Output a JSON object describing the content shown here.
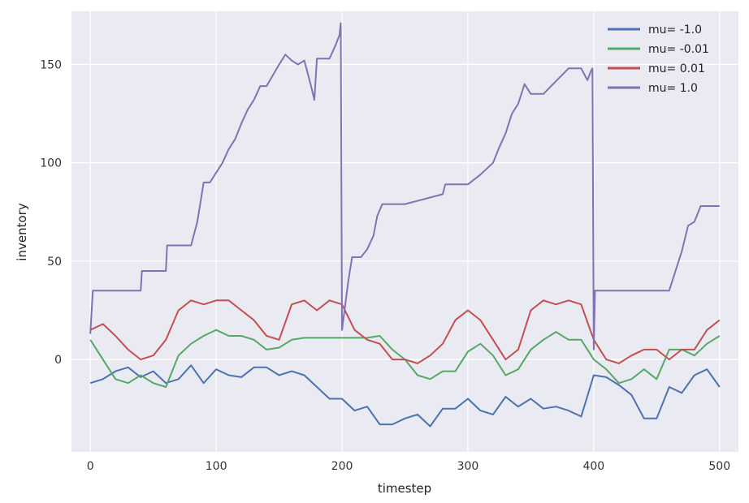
{
  "chart_data": {
    "type": "line",
    "title": "",
    "xlabel": "timestep",
    "ylabel": "inventory",
    "xlim": [
      -15,
      515
    ],
    "ylim": [
      -47,
      177
    ],
    "x_ticks": [
      0,
      100,
      200,
      300,
      400,
      500
    ],
    "y_ticks": [
      0,
      50,
      100,
      150
    ],
    "grid": true,
    "legend_position": "top-right",
    "series": [
      {
        "name": "mu= -1.0",
        "color": "#4c72b0",
        "x": [
          0,
          10,
          20,
          30,
          40,
          50,
          60,
          70,
          80,
          90,
          100,
          110,
          120,
          130,
          140,
          150,
          160,
          170,
          180,
          190,
          200,
          210,
          220,
          230,
          240,
          250,
          260,
          270,
          280,
          290,
          300,
          310,
          320,
          330,
          340,
          350,
          360,
          370,
          380,
          390,
          400,
          410,
          420,
          430,
          440,
          450,
          460,
          470,
          480,
          490,
          500
        ],
        "values": [
          -12,
          -10,
          -6,
          -4,
          -9,
          -6,
          -12,
          -10,
          -3,
          -12,
          -5,
          -8,
          -9,
          -4,
          -4,
          -8,
          -6,
          -8,
          -14,
          -20,
          -20,
          -26,
          -24,
          -33,
          -33,
          -30,
          -28,
          -34,
          -25,
          -25,
          -20,
          -26,
          -28,
          -19,
          -24,
          -20,
          -25,
          -24,
          -26,
          -29,
          -8,
          -9,
          -13,
          -18,
          -30,
          -30,
          -14,
          -17,
          -8,
          -5,
          -14
        ]
      },
      {
        "name": "mu= -0.01",
        "color": "#55a868",
        "x": [
          0,
          10,
          20,
          30,
          40,
          50,
          60,
          70,
          80,
          90,
          100,
          110,
          120,
          130,
          140,
          150,
          160,
          170,
          180,
          190,
          200,
          210,
          220,
          230,
          240,
          250,
          260,
          270,
          280,
          290,
          300,
          310,
          320,
          330,
          340,
          350,
          360,
          370,
          380,
          390,
          400,
          410,
          420,
          430,
          440,
          450,
          460,
          470,
          480,
          490,
          500
        ],
        "values": [
          10,
          0,
          -10,
          -12,
          -8,
          -12,
          -14,
          2,
          8,
          12,
          15,
          12,
          12,
          10,
          5,
          6,
          10,
          11,
          11,
          11,
          11,
          11,
          11,
          12,
          5,
          0,
          -8,
          -10,
          -6,
          -6,
          4,
          8,
          2,
          -8,
          -5,
          5,
          10,
          14,
          10,
          10,
          0,
          -5,
          -12,
          -10,
          -5,
          -10,
          5,
          5,
          2,
          8,
          12
        ]
      },
      {
        "name": "mu= 0.01",
        "color": "#c44e52",
        "x": [
          0,
          10,
          20,
          30,
          40,
          50,
          60,
          70,
          80,
          90,
          100,
          110,
          120,
          130,
          140,
          150,
          160,
          170,
          180,
          190,
          200,
          210,
          220,
          230,
          240,
          250,
          260,
          270,
          280,
          290,
          300,
          310,
          320,
          330,
          340,
          350,
          360,
          370,
          380,
          390,
          400,
          410,
          420,
          430,
          440,
          450,
          460,
          470,
          480,
          490,
          500
        ],
        "values": [
          15,
          18,
          12,
          5,
          0,
          2,
          10,
          25,
          30,
          28,
          30,
          30,
          25,
          20,
          12,
          10,
          28,
          30,
          25,
          30,
          28,
          15,
          10,
          8,
          0,
          0,
          -2,
          2,
          8,
          20,
          25,
          20,
          10,
          0,
          5,
          25,
          30,
          28,
          30,
          28,
          10,
          0,
          -2,
          2,
          5,
          5,
          0,
          5,
          5,
          15,
          20
        ]
      },
      {
        "name": "mu= 1.0",
        "color": "#8172b2",
        "x": [
          0,
          2,
          40,
          41,
          60,
          61,
          80,
          85,
          90,
          95,
          100,
          105,
          110,
          115,
          120,
          125,
          130,
          135,
          140,
          150,
          155,
          160,
          165,
          170,
          175,
          178,
          180,
          190,
          195,
          198,
          199,
          200,
          205,
          208,
          215,
          220,
          225,
          228,
          232,
          250,
          280,
          282,
          300,
          310,
          320,
          325,
          330,
          335,
          340,
          345,
          350,
          360,
          380,
          390,
          395,
          398,
          399,
          400,
          401,
          460,
          465,
          470,
          475,
          480,
          485,
          500
        ],
        "values": [
          13,
          35,
          35,
          45,
          45,
          58,
          58,
          70,
          90,
          90,
          95,
          100,
          107,
          112,
          120,
          127,
          132,
          139,
          139,
          150,
          155,
          152,
          150,
          152,
          140,
          132,
          153,
          153,
          160,
          165,
          171,
          15,
          40,
          52,
          52,
          56,
          63,
          73,
          79,
          79,
          84,
          89,
          89,
          94,
          100,
          108,
          115,
          125,
          130,
          140,
          135,
          135,
          148,
          148,
          142,
          147,
          148,
          5,
          35,
          35,
          45,
          55,
          68,
          70,
          78,
          78
        ]
      }
    ]
  }
}
